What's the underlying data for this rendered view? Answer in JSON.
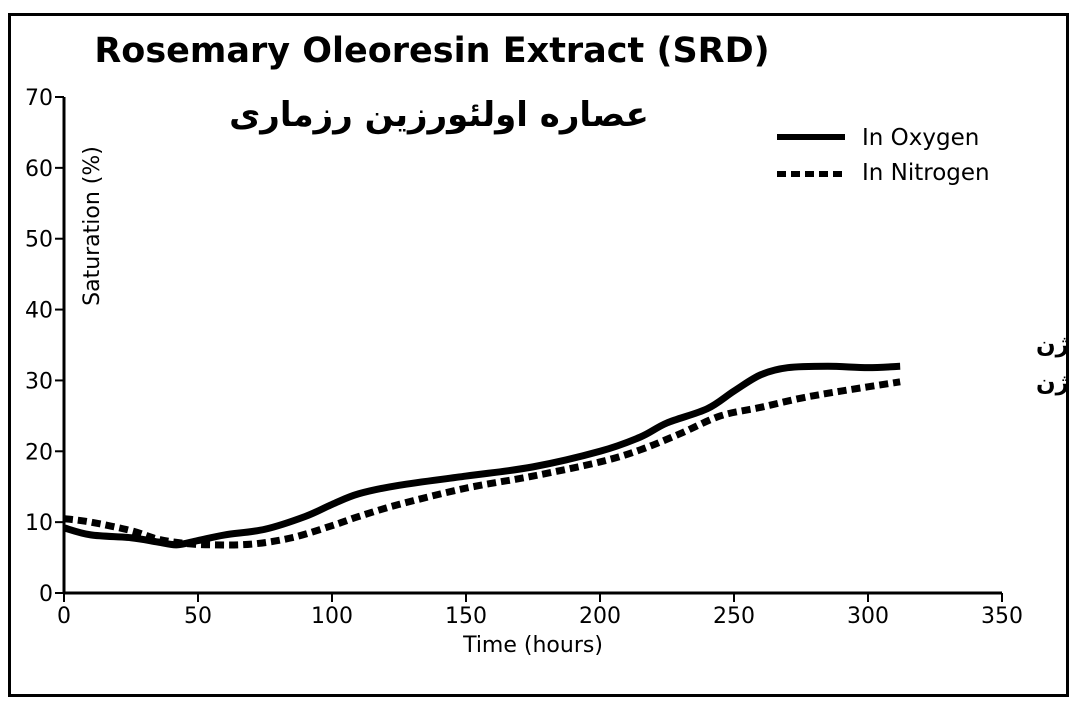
{
  "chart_data": {
    "type": "line",
    "title": "Rosemary Oleoresin Extract (SRD)",
    "subtitle": "عصاره اولئورزین رزماری",
    "xlabel": "Time (hours)",
    "ylabel": "Saturation (%)",
    "xlim": [
      0,
      350
    ],
    "ylim": [
      0,
      70
    ],
    "xticks": [
      0,
      50,
      100,
      150,
      200,
      250,
      300,
      350
    ],
    "yticks": [
      0,
      10,
      20,
      30,
      40,
      50,
      60,
      70
    ],
    "grid": false,
    "legend_position": "top-right",
    "series": [
      {
        "name": "In Oxygen",
        "style": "solid",
        "color": "#000000",
        "annotation": "در اکسیژن",
        "x": [
          0,
          10,
          25,
          35,
          42,
          50,
          60,
          75,
          90,
          100,
          110,
          125,
          150,
          175,
          200,
          215,
          225,
          240,
          250,
          260,
          270,
          285,
          300,
          312
        ],
        "y": [
          9.2,
          8.2,
          7.8,
          7.2,
          6.8,
          7.4,
          8.2,
          9.0,
          10.8,
          12.5,
          14.0,
          15.2,
          16.5,
          17.8,
          20.0,
          22.0,
          24.0,
          26.0,
          28.5,
          30.8,
          31.8,
          32.0,
          31.8,
          32.0
        ]
      },
      {
        "name": "In Nitrogen",
        "style": "dotted",
        "color": "#000000",
        "annotation": "در نیتروژن",
        "x": [
          0,
          10,
          25,
          35,
          45,
          55,
          70,
          85,
          100,
          110,
          125,
          150,
          175,
          200,
          215,
          230,
          245,
          260,
          275,
          290,
          312
        ],
        "y": [
          10.5,
          10.0,
          8.8,
          7.6,
          7.0,
          6.8,
          6.9,
          7.8,
          9.5,
          10.8,
          12.5,
          14.8,
          16.5,
          18.5,
          20.2,
          22.5,
          25.0,
          26.2,
          27.5,
          28.5,
          29.8
        ]
      }
    ]
  }
}
